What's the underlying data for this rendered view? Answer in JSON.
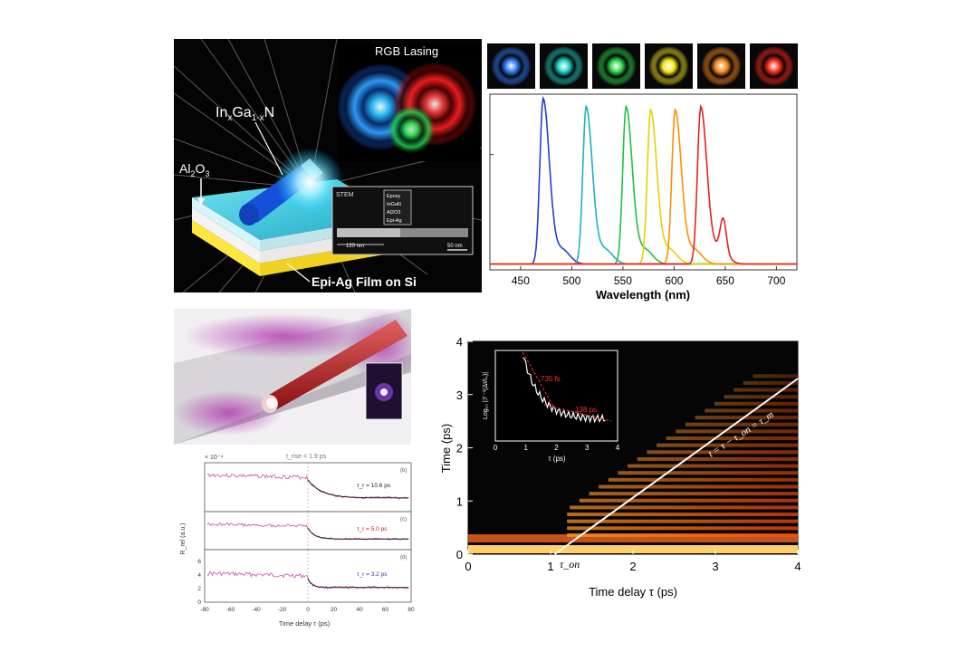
{
  "panel_a": {
    "title": "RGB Lasing",
    "nanorod_label_main": "In",
    "nanorod_label_sub_x": "x",
    "nanorod_label_ga": "Ga",
    "nanorod_label_sub_1x": "1-x",
    "nanorod_label_n": "N",
    "oxide_label_main": "Al",
    "oxide_label_sub2": "2",
    "oxide_label_o": "O",
    "oxide_label_sub3": "3",
    "substrate_label": "Epi-Ag Film on Si",
    "stem": {
      "title": "STEM",
      "inset_labels": [
        "Epoxy",
        "InGaN",
        "Al2O3",
        "Epi-Ag"
      ],
      "scale_left": "120 nm",
      "scale_right": "50 nm"
    }
  },
  "panel_b": {
    "swatch_colors": [
      "#2f7bff",
      "#1fd0c8",
      "#2fd84a",
      "#f6e61c",
      "#ff8a1c",
      "#ff2a1c"
    ]
  },
  "panel_c": {
    "strip_labels": [
      "(b)",
      "(c)",
      "(d)"
    ],
    "fit_labels": [
      "τ_r = 10.6 ps",
      "τ_r = 5.0 ps",
      "τ_r = 3.2 ps"
    ],
    "axis_exponent": "× 10⁻⁴",
    "top_note": "t_rise = 1.9 ps",
    "ylabel": "R_rel (a.u.)",
    "xlabel": "Time delay τ (ps)"
  },
  "panel_d": {
    "line_label": "t = τ − τ_on = τ_m",
    "tau_on_label": "τ_on",
    "inset": {
      "ylabel": "Log₁₀ |ℱ⁻¹(ΔI/I₀)|",
      "xlabel": "τ (ps)",
      "note1": "735 fs",
      "note2": "138 ps"
    }
  },
  "chart_data": [
    {
      "type": "line",
      "xlabel": "Wavelength (nm)",
      "ylabel": "",
      "xlim": [
        420,
        720
      ],
      "x_ticks": [
        "450",
        "500",
        "550",
        "600",
        "650",
        "700"
      ],
      "series": [
        {
          "color": "#2040d0",
          "peak_x": 472,
          "peak_y": 1.0
        },
        {
          "color": "#20b0c0",
          "peak_x": 514,
          "peak_y": 0.95
        },
        {
          "color": "#20c040",
          "peak_x": 553,
          "peak_y": 0.95
        },
        {
          "color": "#e8d000",
          "peak_x": 577,
          "peak_y": 0.93
        },
        {
          "color": "#ff9000",
          "peak_x": 601,
          "peak_y": 0.93
        },
        {
          "color": "#e82020",
          "peak_x": 626,
          "peak_y": 0.95
        }
      ]
    },
    {
      "type": "heatmap",
      "xlabel": "Time delay τ (ps)",
      "ylabel": "Time (ps)",
      "xlim": [
        0,
        4
      ],
      "ylim": [
        0,
        4
      ],
      "x_ticks": [
        "0",
        "1",
        "2",
        "3",
        "4"
      ],
      "y_ticks": [
        "0",
        "1",
        "2",
        "3",
        "4"
      ],
      "overlay_line": {
        "x": [
          1.05,
          4.0
        ],
        "y": [
          0.0,
          3.3
        ]
      }
    },
    {
      "type": "line",
      "xlabel": "τ (ps)",
      "xlim": [
        0,
        4
      ],
      "x_ticks": [
        "0",
        "1",
        "2",
        "3",
        "4"
      ],
      "series": [
        {
          "color": "#ffffff",
          "x": [
            0.9,
            1.1,
            1.3,
            1.5,
            1.8,
            2.2,
            2.6,
            3.0,
            3.4,
            3.6
          ],
          "y": [
            0.96,
            0.8,
            0.6,
            0.48,
            0.38,
            0.34,
            0.3,
            0.28,
            0.26,
            0.24
          ]
        }
      ]
    },
    {
      "type": "line",
      "xlabel": "Time delay τ (ps)",
      "xlim": [
        -80,
        80
      ],
      "x_ticks": [
        "-80",
        "-60",
        "-40",
        "-20",
        "0",
        "20",
        "40",
        "60",
        "80"
      ],
      "y_ticks_bottom": [
        "0",
        "2",
        "4",
        "6"
      ]
    }
  ]
}
